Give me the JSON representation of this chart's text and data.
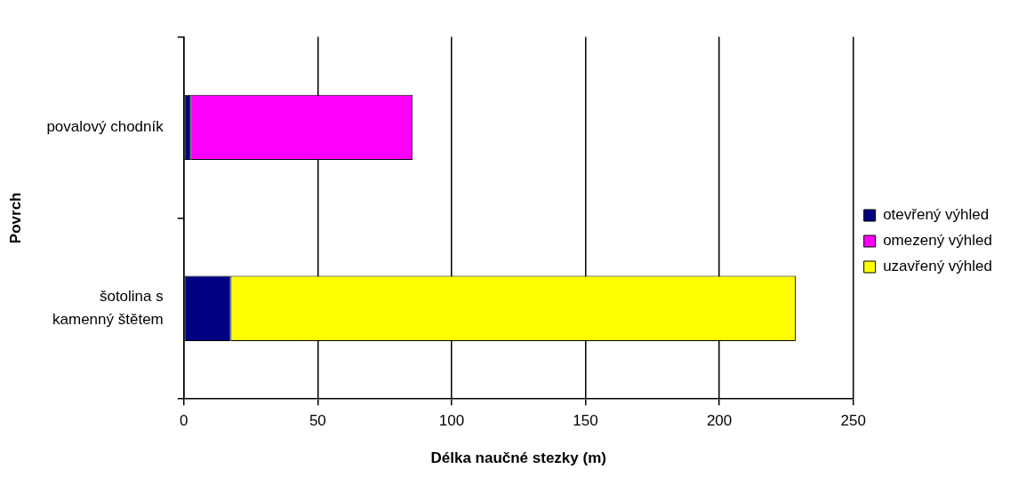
{
  "chart_data": {
    "type": "bar",
    "orientation": "horizontal",
    "stacked": true,
    "categories": [
      "povalový chodník",
      "šotolina s kamenný štětem"
    ],
    "series": [
      {
        "name": "otevřený výhled",
        "color": "#000080",
        "values": [
          2.5,
          17.5
        ]
      },
      {
        "name": "omezený výhled",
        "color": "#ff00ff",
        "values": [
          83,
          null
        ]
      },
      {
        "name": "uzavřený výhled",
        "color": "#ffff00",
        "values": [
          null,
          211
        ]
      }
    ],
    "xlabel": "Délka naučné stezky (m)",
    "ylabel": "Povrch",
    "xlim": [
      0,
      250
    ],
    "xticks": [
      0,
      50,
      100,
      150,
      200,
      250
    ],
    "grid": "x",
    "legend": "right"
  }
}
